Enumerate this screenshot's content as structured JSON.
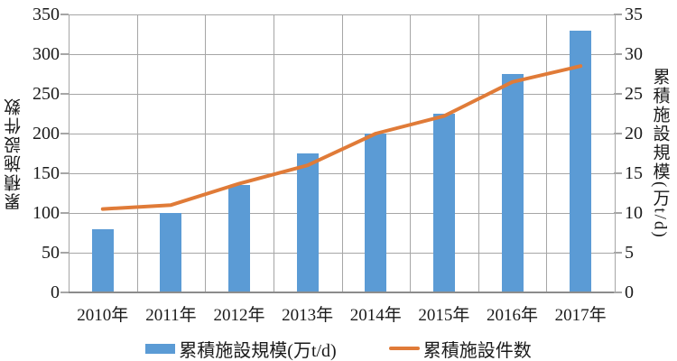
{
  "chart_data": {
    "type": "bar",
    "subtype": "combo-bar-line-dual-axis",
    "categories": [
      "2010年",
      "2011年",
      "2012年",
      "2013年",
      "2014年",
      "2015年",
      "2016年",
      "2017年"
    ],
    "series": [
      {
        "name": "累積施設規模(万t/d)",
        "type": "bar",
        "axis": "right",
        "color": "#5b9bd5",
        "values": [
          8,
          10,
          13.5,
          17.5,
          20,
          22.5,
          27.5,
          33
        ]
      },
      {
        "name": "累積施設件数",
        "type": "line",
        "axis": "left",
        "color": "#e07b38",
        "values": [
          105,
          110,
          137,
          160,
          200,
          222,
          265,
          285
        ]
      }
    ],
    "left_axis": {
      "title": "累積施設件数",
      "min": 0,
      "max": 350,
      "step": 50
    },
    "right_axis": {
      "title": "累積施設規模(万t/d)",
      "min": 0,
      "max": 35,
      "step": 5
    },
    "grid": {
      "horizontal": true,
      "vertical": true,
      "color": "#a6a6a6",
      "axis_color": "#8c8c8c"
    },
    "legend_position": "bottom",
    "title": ""
  }
}
